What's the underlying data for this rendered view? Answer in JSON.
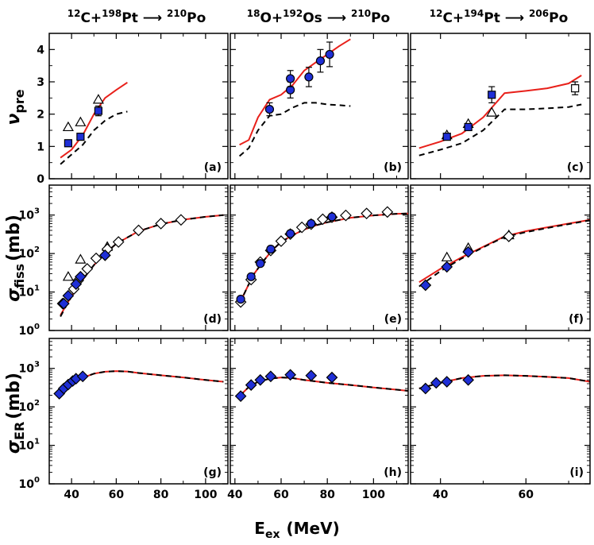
{
  "figure": {
    "xlabel_main": "E",
    "xlabel_sub": "ex",
    "xlabel_unit": "(MeV)"
  },
  "column_titles": [
    {
      "a1": "12",
      "e1": "C+",
      "a2": "198",
      "e2": "Pt",
      "arrow": " ⟶ ",
      "a3": "210",
      "e3": "Po"
    },
    {
      "a1": "18",
      "e1": "O+",
      "a2": "192",
      "e2": "Os",
      "arrow": " ⟶ ",
      "a3": "210",
      "e3": "Po"
    },
    {
      "a1": "12",
      "e1": "C+",
      "a2": "194",
      "e2": "Pt",
      "arrow": " ⟶ ",
      "a3": "206",
      "e3": "Po"
    }
  ],
  "row_labels": [
    {
      "greek": "ν",
      "sub": "pre",
      "unit": ""
    },
    {
      "greek": "σ",
      "sub": "fiss",
      "unit": "(mb)"
    },
    {
      "greek": "σ",
      "sub": "ER",
      "unit": "(mb)"
    }
  ],
  "colors": {
    "theory_solid": "#e8201a",
    "theory_dashed": "#000000",
    "marker_fill": "#1f2fd6",
    "marker_open": "#ffffff"
  },
  "columns": [
    {
      "xlim": [
        30,
        110
      ],
      "xticks": [
        40,
        60,
        80,
        100
      ]
    },
    {
      "xlim": [
        38,
        115
      ],
      "xticks": [
        40,
        60,
        80,
        100
      ]
    },
    {
      "xlim": [
        33,
        75
      ],
      "xticks": [
        40,
        60
      ]
    }
  ],
  "rows": [
    {
      "scale": "linear",
      "ylim": [
        0,
        4.5
      ],
      "yticks": [
        {
          "v": 0,
          "label": "0"
        },
        {
          "v": 1,
          "label": "1"
        },
        {
          "v": 2,
          "label": "2"
        },
        {
          "v": 3,
          "label": "3"
        },
        {
          "v": 4,
          "label": "4"
        }
      ]
    },
    {
      "scale": "log",
      "ylim": [
        1,
        6000
      ],
      "yticks": [
        {
          "v": 1,
          "base": "10",
          "exp": "0"
        },
        {
          "v": 10,
          "base": "10",
          "exp": "1"
        },
        {
          "v": 100,
          "base": "10",
          "exp": "2"
        },
        {
          "v": 1000,
          "base": "10",
          "exp": "3"
        }
      ]
    },
    {
      "scale": "log",
      "ylim": [
        1,
        6000
      ],
      "yticks": [
        {
          "v": 1,
          "base": "10",
          "exp": "0"
        },
        {
          "v": 10,
          "base": "10",
          "exp": "1"
        },
        {
          "v": 100,
          "base": "10",
          "exp": "2"
        },
        {
          "v": 1000,
          "base": "10",
          "exp": "3"
        }
      ]
    }
  ],
  "chart_data": [
    {
      "panel": "(a)",
      "row": 0,
      "col": 0,
      "type": "line+scatter",
      "solid": {
        "x": [
          35,
          40,
          45,
          50,
          55,
          60,
          65
        ],
        "y": [
          0.65,
          0.9,
          1.35,
          2.0,
          2.5,
          2.75,
          2.98
        ]
      },
      "dashed": {
        "x": [
          35,
          40,
          45,
          50,
          55,
          60,
          65
        ],
        "y": [
          0.45,
          0.75,
          1.05,
          1.5,
          1.8,
          2.0,
          2.08
        ]
      },
      "filled_squares": [
        {
          "x": 38.5,
          "y": 1.1
        },
        {
          "x": 44,
          "y": 1.3
        },
        {
          "x": 52,
          "y": 2.1,
          "err": 0.15
        }
      ],
      "open_triangles": [
        {
          "x": 38.5,
          "y": 1.6
        },
        {
          "x": 44,
          "y": 1.75
        },
        {
          "x": 52,
          "y": 2.45
        }
      ]
    },
    {
      "panel": "(b)",
      "row": 0,
      "col": 1,
      "type": "line+scatter",
      "solid": {
        "x": [
          42,
          46,
          50,
          55,
          60,
          65,
          70,
          75,
          80,
          85,
          90
        ],
        "y": [
          1.05,
          1.2,
          1.9,
          2.45,
          2.6,
          2.9,
          3.35,
          3.6,
          3.85,
          4.1,
          4.32
        ]
      },
      "dashed": {
        "x": [
          42,
          46,
          50,
          55,
          60,
          65,
          70,
          75,
          80,
          85,
          90
        ],
        "y": [
          0.7,
          0.95,
          1.5,
          1.95,
          2.0,
          2.2,
          2.35,
          2.35,
          2.3,
          2.28,
          2.25
        ]
      },
      "filled_circles": [
        {
          "x": 55,
          "y": 2.15,
          "err": 0.2
        },
        {
          "x": 64,
          "y": 2.75,
          "err": 0.25
        },
        {
          "x": 64,
          "y": 3.1,
          "err": 0.25
        },
        {
          "x": 72,
          "y": 3.15,
          "err": 0.3
        },
        {
          "x": 77,
          "y": 3.65,
          "err": 0.35
        },
        {
          "x": 81,
          "y": 3.85,
          "err": 0.38
        }
      ]
    },
    {
      "panel": "(c)",
      "row": 0,
      "col": 2,
      "type": "line+scatter",
      "solid": {
        "x": [
          35,
          40,
          45,
          50,
          55,
          60,
          65,
          70,
          73
        ],
        "y": [
          0.95,
          1.15,
          1.4,
          1.9,
          2.65,
          2.72,
          2.8,
          2.95,
          3.2
        ]
      },
      "dashed": {
        "x": [
          35,
          40,
          45,
          50,
          55,
          60,
          65,
          70,
          73
        ],
        "y": [
          0.72,
          0.9,
          1.1,
          1.5,
          2.15,
          2.15,
          2.18,
          2.22,
          2.3
        ]
      },
      "filled_squares": [
        {
          "x": 41.5,
          "y": 1.3
        },
        {
          "x": 46.5,
          "y": 1.6
        },
        {
          "x": 52,
          "y": 2.6,
          "err": 0.25
        }
      ],
      "open_triangles": [
        {
          "x": 41.5,
          "y": 1.35
        },
        {
          "x": 46.5,
          "y": 1.7
        },
        {
          "x": 52,
          "y": 2.05
        }
      ],
      "open_squares": [
        {
          "x": 71.5,
          "y": 2.8,
          "err": 0.2
        }
      ]
    },
    {
      "panel": "(d)",
      "row": 1,
      "col": 0,
      "type": "line+scatter",
      "solid": {
        "x": [
          35,
          38,
          42,
          46,
          50,
          55,
          60,
          70,
          80,
          90,
          100,
          108
        ],
        "y": [
          2.5,
          5,
          12,
          25,
          50,
          100,
          180,
          380,
          580,
          760,
          900,
          1000
        ]
      },
      "dashed": {
        "x": [
          35,
          38,
          42,
          46,
          50,
          55,
          60,
          70,
          80,
          90,
          100,
          108
        ],
        "y": [
          2.3,
          4.8,
          12,
          25,
          50,
          100,
          180,
          380,
          580,
          760,
          900,
          1000
        ]
      },
      "filled_diamonds": [
        {
          "x": 36.5,
          "y": 5
        },
        {
          "x": 38.5,
          "y": 8
        },
        {
          "x": 42,
          "y": 16
        },
        {
          "x": 44,
          "y": 25
        },
        {
          "x": 55,
          "y": 90
        }
      ],
      "open_diamonds": [
        {
          "x": 36,
          "y": 5
        },
        {
          "x": 41,
          "y": 12
        },
        {
          "x": 43,
          "y": 20
        },
        {
          "x": 47,
          "y": 40
        },
        {
          "x": 51,
          "y": 75
        },
        {
          "x": 56,
          "y": 130
        },
        {
          "x": 61,
          "y": 200
        },
        {
          "x": 70,
          "y": 400
        },
        {
          "x": 80,
          "y": 600
        },
        {
          "x": 89,
          "y": 750
        }
      ],
      "open_triangles": [
        {
          "x": 38.5,
          "y": 25
        },
        {
          "x": 44,
          "y": 70
        },
        {
          "x": 56,
          "y": 150
        }
      ]
    },
    {
      "panel": "(e)",
      "row": 1,
      "col": 1,
      "type": "line+scatter",
      "solid": {
        "x": [
          42,
          45,
          48,
          52,
          56,
          60,
          65,
          70,
          75,
          80,
          90,
          100,
          110,
          115
        ],
        "y": [
          5,
          12,
          28,
          60,
          120,
          200,
          300,
          420,
          540,
          650,
          850,
          980,
          1080,
          1100
        ]
      },
      "dashed": {
        "x": [
          42,
          45,
          48,
          52,
          56,
          60,
          65,
          70,
          75,
          80,
          90,
          100,
          110,
          115
        ],
        "y": [
          5,
          12,
          28,
          60,
          120,
          200,
          300,
          420,
          540,
          650,
          850,
          980,
          1080,
          1100
        ]
      },
      "filled_circles": [
        {
          "x": 42.5,
          "y": 6.5
        },
        {
          "x": 47,
          "y": 25
        },
        {
          "x": 51,
          "y": 55
        },
        {
          "x": 55.5,
          "y": 130
        },
        {
          "x": 64,
          "y": 330
        },
        {
          "x": 73,
          "y": 600
        },
        {
          "x": 82,
          "y": 900
        }
      ],
      "open_diamonds": [
        {
          "x": 42.5,
          "y": 5.5
        },
        {
          "x": 47,
          "y": 21
        },
        {
          "x": 51,
          "y": 60
        },
        {
          "x": 55.5,
          "y": 120
        },
        {
          "x": 60,
          "y": 210
        },
        {
          "x": 64,
          "y": 320
        },
        {
          "x": 69,
          "y": 480
        },
        {
          "x": 73,
          "y": 580
        },
        {
          "x": 78,
          "y": 780
        },
        {
          "x": 82,
          "y": 880
        },
        {
          "x": 88,
          "y": 980
        },
        {
          "x": 97,
          "y": 1100
        },
        {
          "x": 106,
          "y": 1200
        }
      ]
    },
    {
      "panel": "(f)",
      "row": 1,
      "col": 2,
      "type": "line+scatter",
      "solid": {
        "x": [
          35,
          40,
          45,
          50,
          55,
          60,
          65,
          70,
          75
        ],
        "y": [
          18,
          40,
          80,
          150,
          280,
          380,
          480,
          600,
          750
        ]
      },
      "dashed": {
        "x": [
          35,
          40,
          45,
          50,
          55,
          60,
          65,
          70,
          75
        ],
        "y": [
          14,
          35,
          75,
          145,
          270,
          360,
          460,
          580,
          730
        ]
      },
      "filled_diamonds": [
        {
          "x": 36.5,
          "y": 15
        },
        {
          "x": 41.5,
          "y": 45
        },
        {
          "x": 46.5,
          "y": 110
        }
      ],
      "open_triangles": [
        {
          "x": 41.5,
          "y": 80
        },
        {
          "x": 46.5,
          "y": 140
        },
        {
          "x": 56,
          "y": 300
        }
      ],
      "open_diamonds": [
        {
          "x": 56,
          "y": 280
        }
      ]
    },
    {
      "panel": "(g)",
      "row": 2,
      "col": 0,
      "type": "line+scatter",
      "solid": {
        "x": [
          34,
          38,
          42,
          46,
          50,
          55,
          60,
          65,
          70,
          80,
          90,
          100,
          108
        ],
        "y": [
          200,
          320,
          450,
          600,
          730,
          820,
          850,
          830,
          760,
          660,
          580,
          500,
          450
        ]
      },
      "dashed": {
        "x": [
          34,
          38,
          42,
          46,
          50,
          55,
          60,
          65,
          70,
          80,
          90,
          100,
          108
        ],
        "y": [
          200,
          320,
          450,
          600,
          730,
          820,
          850,
          830,
          760,
          660,
          580,
          500,
          450
        ]
      },
      "filled_diamonds": [
        {
          "x": 34.5,
          "y": 220
        },
        {
          "x": 36.5,
          "y": 300
        },
        {
          "x": 38.5,
          "y": 380
        },
        {
          "x": 40.5,
          "y": 470
        },
        {
          "x": 42,
          "y": 540
        },
        {
          "x": 45,
          "y": 620
        }
      ]
    },
    {
      "panel": "(h)",
      "row": 2,
      "col": 1,
      "type": "line+scatter",
      "solid": {
        "x": [
          42,
          46,
          50,
          55,
          60,
          65,
          70,
          80,
          90,
          100,
          110,
          115
        ],
        "y": [
          190,
          330,
          450,
          540,
          580,
          560,
          500,
          420,
          370,
          320,
          280,
          260
        ]
      },
      "dashed": {
        "x": [
          42,
          46,
          50,
          55,
          60,
          65,
          70,
          80,
          90,
          100,
          110,
          115
        ],
        "y": [
          190,
          330,
          450,
          540,
          580,
          560,
          500,
          420,
          370,
          320,
          280,
          260
        ]
      },
      "filled_diamonds": [
        {
          "x": 42.5,
          "y": 190
        },
        {
          "x": 47,
          "y": 370
        },
        {
          "x": 51,
          "y": 500
        },
        {
          "x": 55.5,
          "y": 620
        },
        {
          "x": 64,
          "y": 680
        },
        {
          "x": 73,
          "y": 650
        },
        {
          "x": 82,
          "y": 580
        }
      ]
    },
    {
      "panel": "(i)",
      "row": 2,
      "col": 2,
      "type": "line+scatter",
      "solid": {
        "x": [
          35,
          40,
          45,
          50,
          55,
          60,
          65,
          70,
          75
        ],
        "y": [
          300,
          420,
          560,
          640,
          660,
          640,
          600,
          560,
          450
        ]
      },
      "dashed": {
        "x": [
          35,
          40,
          45,
          50,
          55,
          60,
          65,
          70,
          75
        ],
        "y": [
          300,
          420,
          560,
          640,
          660,
          640,
          600,
          560,
          450
        ]
      },
      "filled_diamonds": [
        {
          "x": 36.5,
          "y": 300
        },
        {
          "x": 39,
          "y": 420
        },
        {
          "x": 41.5,
          "y": 450
        },
        {
          "x": 46.5,
          "y": 500
        }
      ]
    }
  ]
}
